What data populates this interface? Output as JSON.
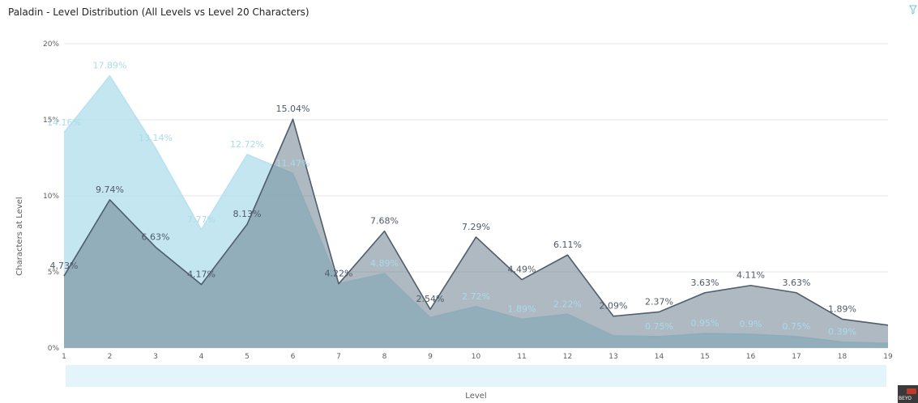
{
  "header": {
    "title": "Paladin - Level Distribution (All Levels vs Level 20 Characters)"
  },
  "icons": {
    "filter": "filter-icon",
    "corner": "logo-icon"
  },
  "corner_logo_text": "BEYO",
  "colors": {
    "all_levels_fill": "#b4e0ee",
    "all_levels_line": "#b8e2ef",
    "level20_fill": "#6c7f8e",
    "level20_line": "#505d6a",
    "gridline": "#e6e6e6",
    "scrollbar": "#e3f4fa"
  },
  "chart_data": {
    "type": "area",
    "xlabel": "Level",
    "ylabel": "Characters at Level",
    "x": [
      1,
      2,
      3,
      4,
      5,
      6,
      7,
      8,
      9,
      10,
      11,
      12,
      13,
      14,
      15,
      16,
      17,
      18,
      19
    ],
    "ylim": [
      0,
      20
    ],
    "yticks": [
      "0%",
      "5%",
      "10%",
      "15%",
      "20%"
    ],
    "grid": true,
    "legend": "none",
    "series": [
      {
        "key": "all_levels",
        "values": [
          14.16,
          17.89,
          13.14,
          7.77,
          12.72,
          11.47,
          4.22,
          4.89,
          2.0,
          2.72,
          1.89,
          2.22,
          0.8,
          0.75,
          0.95,
          0.9,
          0.75,
          0.39,
          0.3
        ],
        "labels": [
          "14.16%",
          "17.89%",
          "13.14%",
          "7.77%",
          "12.72%",
          "11.47%",
          "",
          "4.89%",
          "",
          "2.72%",
          "1.89%",
          "2.22%",
          "",
          "0.75%",
          "0.95%",
          "0.9%",
          "0.75%",
          "0.39%",
          ""
        ]
      },
      {
        "key": "level_20",
        "values": [
          4.73,
          9.74,
          6.63,
          4.17,
          8.13,
          15.04,
          4.22,
          7.68,
          2.54,
          7.29,
          4.49,
          6.11,
          2.09,
          2.37,
          3.63,
          4.11,
          3.63,
          1.89,
          1.5
        ],
        "labels": [
          "4.73%",
          "9.74%",
          "6.63%",
          "4.17%",
          "8.13%",
          "15.04%",
          "4.22%",
          "7.68%",
          "2.54%",
          "7.29%",
          "4.49%",
          "6.11%",
          "2.09%",
          "2.37%",
          "3.63%",
          "4.11%",
          "3.63%",
          "1.89%",
          ""
        ]
      }
    ]
  }
}
